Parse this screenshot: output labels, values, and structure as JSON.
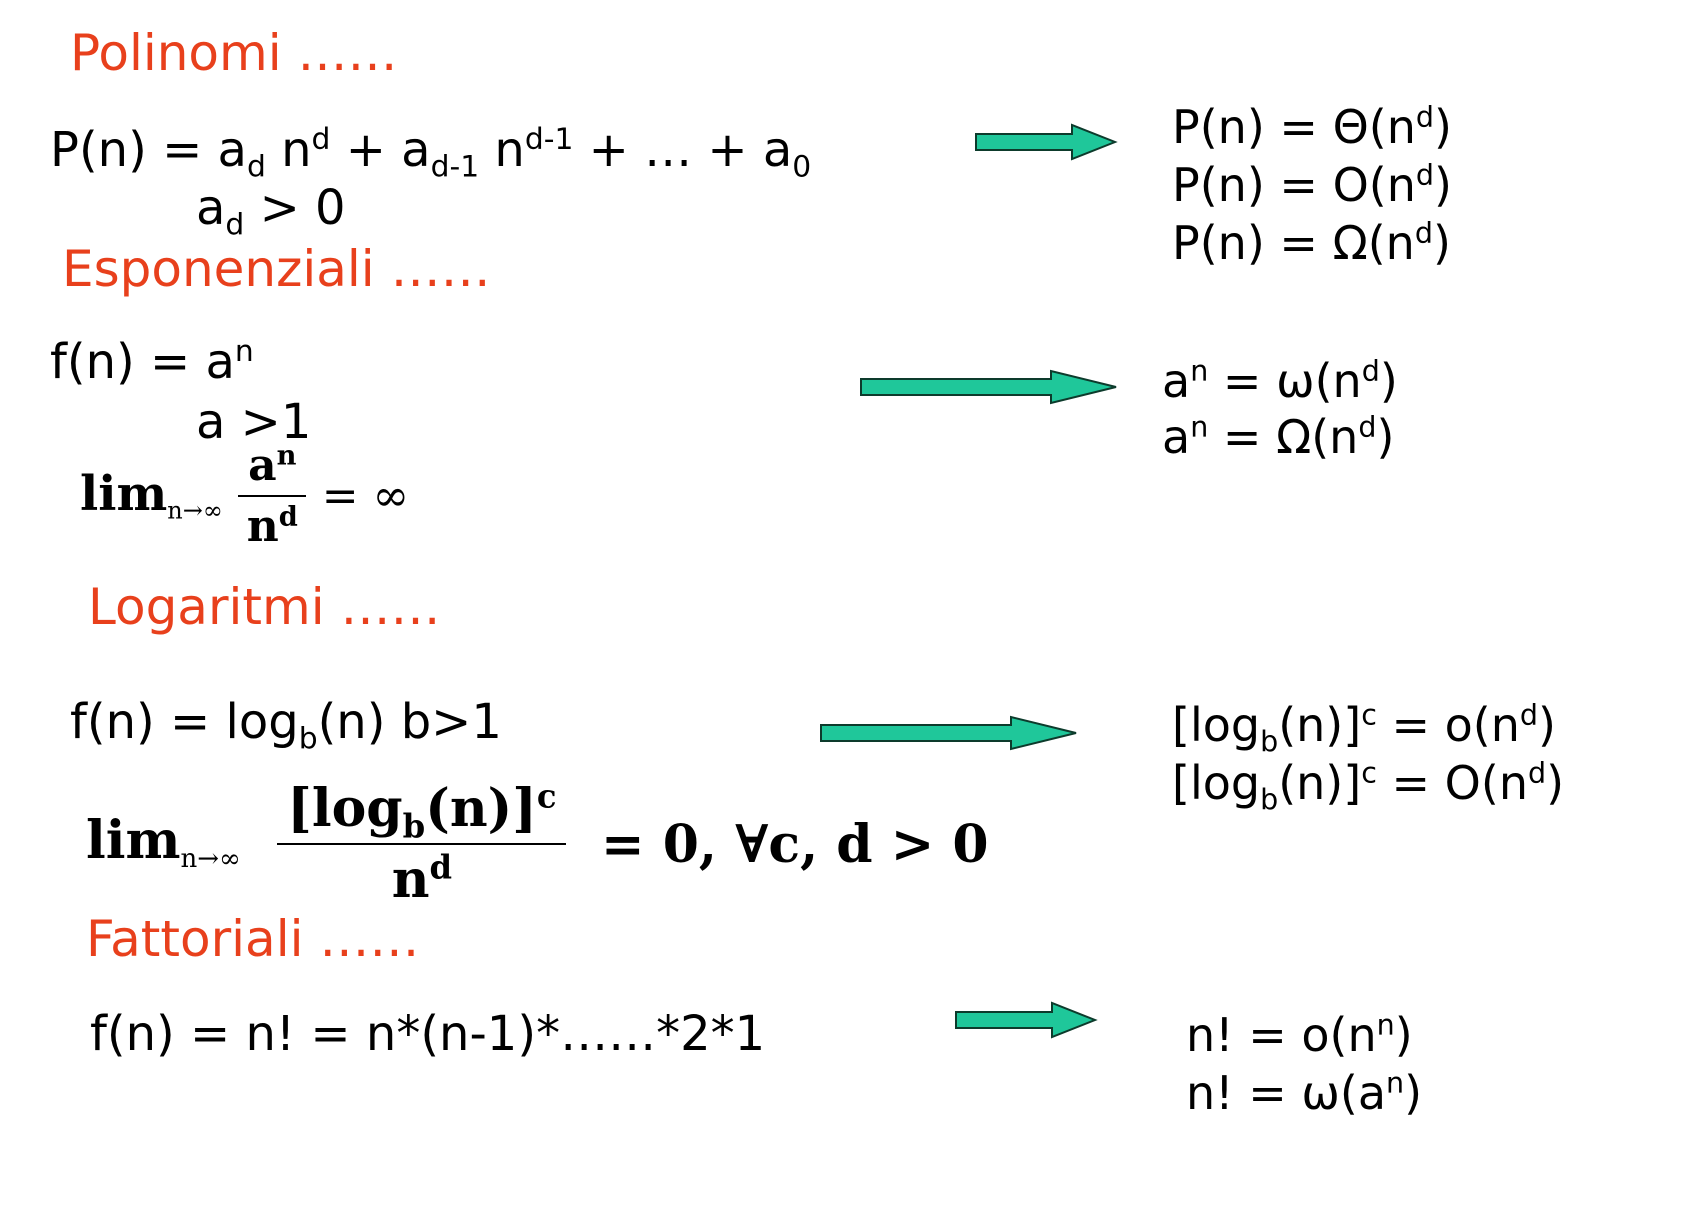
{
  "colors": {
    "heading": "#e8401c",
    "arrow_fill": "#1fc79a",
    "arrow_stroke": "#0d3b2c"
  },
  "sections": {
    "polinomi": {
      "title": "Polinomi ……",
      "formula": {
        "p1": "P(n) = a",
        "s1": "d",
        "p2": " n",
        "e1": "d",
        "p3": " + a",
        "s2": "d-1",
        "p4": " n",
        "e2": "d-1",
        "p5": " + … + a",
        "s3": "0"
      },
      "cond": {
        "p1": "a",
        "s1": "d",
        "p2": " > 0"
      },
      "results": [
        {
          "lhs": "P(n) =  ",
          "sym": "Θ",
          "p": "(n",
          "e": "d",
          "q": ")"
        },
        {
          "lhs": "P(n) =  ",
          "sym": "O",
          "p": "(n",
          "e": "d",
          "q": ")"
        },
        {
          "lhs": "P(n) =  ",
          "sym": "Ω",
          "p": "(n",
          "e": "d",
          "q": ")"
        }
      ]
    },
    "esponenziali": {
      "title": "Esponenziali ……",
      "formula": {
        "p1": "f(n) = a",
        "e1": "n"
      },
      "cond": "a >1",
      "limit": {
        "lim": "lim",
        "sub": "n→∞",
        "num_base": "a",
        "num_exp": "n",
        "den_base": "n",
        "den_exp": "d",
        "rest": "= ∞"
      },
      "results": [
        {
          "lhs": "a",
          "lexp": "n",
          "mid": " =  ",
          "sym": "ω",
          "p": "(n",
          "e": "d",
          "q": ")"
        },
        {
          "lhs": "a",
          "lexp": "n",
          "mid": " =  ",
          "sym": "Ω",
          "p": "(n",
          "e": "d",
          "q": ")"
        }
      ]
    },
    "logaritmi": {
      "title": "Logaritmi ……",
      "formula": {
        "p1": "f(n) = log",
        "s1": "b",
        "p2": "(n)   b>1"
      },
      "limit": {
        "lim": "lim",
        "sub": "n→∞",
        "num_a": "[log",
        "num_sub": "b",
        "num_b": "(n)]",
        "num_exp": "c",
        "den_base": "n",
        "den_exp": "d",
        "rest": "= 0, ∀c, d > 0"
      },
      "results": [
        {
          "p1": "[log",
          "s1": "b",
          "p2": "(n)]",
          "e1": "c",
          "p3": " =  o(n",
          "e2": "d",
          "p4": ")"
        },
        {
          "p1": "[log",
          "s1": "b",
          "p2": "(n)]",
          "e1": "c",
          "p3": " =  O(n",
          "e2": "d",
          "p4": ")"
        }
      ]
    },
    "fattoriali": {
      "title": "Fattoriali ……",
      "formula": "f(n) = n! = n*(n-1)*……*2*1",
      "results": [
        {
          "lhs": "n! =  o(n",
          "e": "n",
          "q": ")"
        },
        {
          "lhs": "n! =   ω(a",
          "e": "n",
          "q": ")"
        }
      ]
    }
  }
}
